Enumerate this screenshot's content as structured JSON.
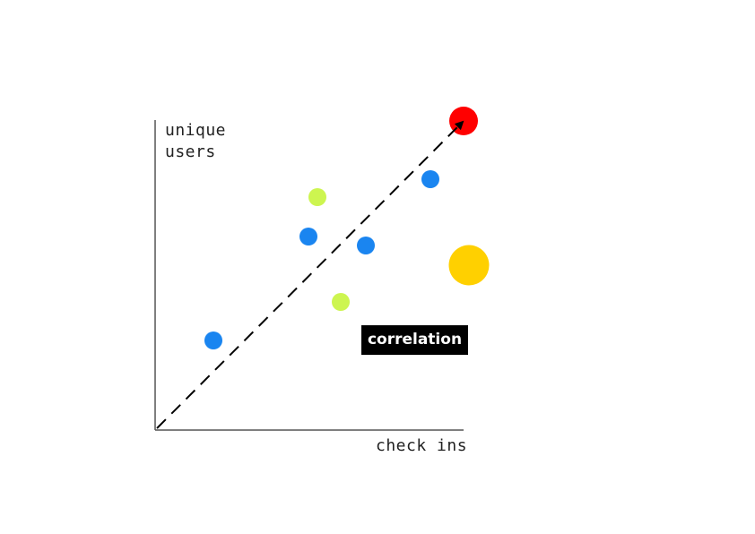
{
  "y_label_line1": "unique",
  "y_label_line2": "users",
  "x_label": "check ins",
  "badge_text": "correlation",
  "colors": {
    "axis": "#555555",
    "trend_line": "#000000",
    "blue": "#1a85f0",
    "lime": "#cdf550",
    "red": "#ff0000",
    "gold": "#ffd000",
    "badge_bg": "#000000",
    "badge_text": "#ffffff"
  },
  "trend_line_style": "dashed-arrow",
  "points": [
    {
      "color": "blue",
      "size": "small"
    },
    {
      "color": "blue",
      "size": "small"
    },
    {
      "color": "blue",
      "size": "small"
    },
    {
      "color": "blue",
      "size": "small"
    },
    {
      "color": "lime",
      "size": "small"
    },
    {
      "color": "lime",
      "size": "small"
    },
    {
      "color": "red",
      "size": "medium"
    },
    {
      "color": "gold",
      "size": "large"
    }
  ]
}
